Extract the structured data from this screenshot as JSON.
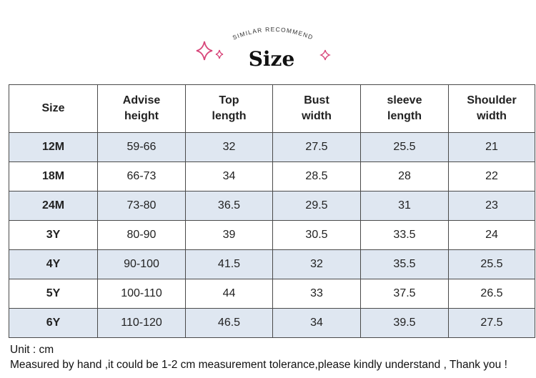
{
  "header": {
    "arc_text": "SIMILAR RECOMMEND",
    "title": "Size"
  },
  "table": {
    "columns": [
      [
        "Size"
      ],
      [
        "Advise",
        "height"
      ],
      [
        "Top",
        "length"
      ],
      [
        "Bust",
        "width"
      ],
      [
        "sleeve",
        "length"
      ],
      [
        "Shoulder",
        "width"
      ]
    ],
    "rows": [
      [
        "12M",
        "59-66",
        32,
        27.5,
        25.5,
        21
      ],
      [
        "18M",
        "66-73",
        34,
        28.5,
        28,
        22
      ],
      [
        "24M",
        "73-80",
        36.5,
        29.5,
        31,
        23
      ],
      [
        "3Y",
        "80-90",
        39,
        30.5,
        33.5,
        24
      ],
      [
        "4Y",
        "90-100",
        41.5,
        32,
        35.5,
        25.5
      ],
      [
        "5Y",
        "100-110",
        44,
        33,
        37.5,
        26.5
      ],
      [
        "6Y",
        "110-120",
        46.5,
        34,
        39.5,
        27.5
      ]
    ]
  },
  "footer": {
    "unit": "Unit : cm",
    "note": "Measured by hand ,it could be 1-2 cm measurement tolerance,please kindly understand , Thank you !"
  }
}
